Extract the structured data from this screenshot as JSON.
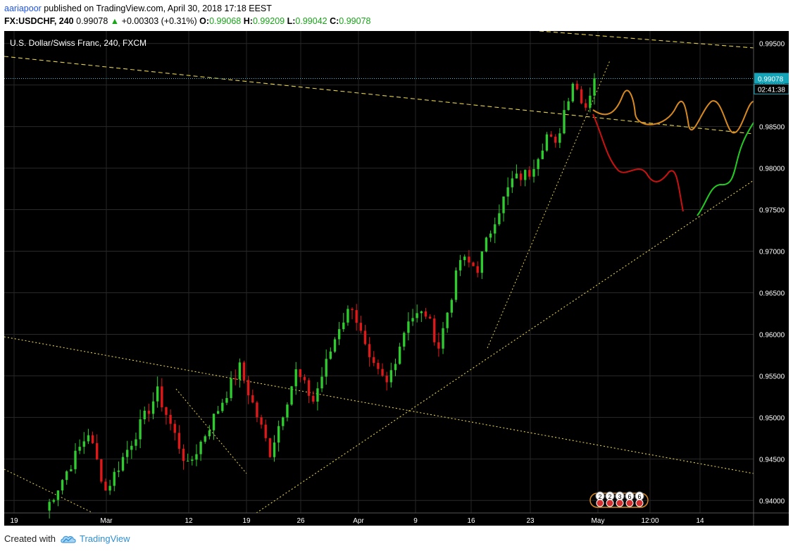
{
  "header": {
    "author": "aariapoor",
    "published_text": " published on TradingView.com, April 30, 2018 17:18 EEST",
    "symbol": "FX:USDCHF, 240",
    "last": "0.99078",
    "change": "+0.00303 (+0.31%)",
    "o_label": "O:",
    "o_value": "0.99068",
    "h_label": "H:",
    "h_value": "0.99209",
    "l_label": "L:",
    "l_value": "0.99042",
    "c_label": "C:",
    "c_value": "0.99078"
  },
  "chart_data": {
    "type": "candlestick",
    "title": "U.S. Dollar/Swiss Franc, 240, FXCM",
    "ylim": [
      0.9385,
      0.9965
    ],
    "y_ticks": [
      "0.99500",
      "0.99000",
      "0.98500",
      "0.98000",
      "0.97500",
      "0.97000",
      "0.96500",
      "0.96000",
      "0.95500",
      "0.95000",
      "0.94500",
      "0.94000"
    ],
    "x_ticks": [
      "19",
      "Mar",
      "12",
      "19",
      "26",
      "Apr",
      "9",
      "16",
      "23",
      "May",
      "12:00",
      "14"
    ],
    "last_price_label": "0.99078",
    "countdown_label": "02:41:38",
    "last_price": 0.99078,
    "key_points": [
      {
        "bar": 0,
        "price": 0.9388
      },
      {
        "bar": 10,
        "price": 0.9482
      },
      {
        "bar": 14,
        "price": 0.9412
      },
      {
        "bar": 26,
        "price": 0.953
      },
      {
        "bar": 33,
        "price": 0.944
      },
      {
        "bar": 45,
        "price": 0.956
      },
      {
        "bar": 52,
        "price": 0.9458
      },
      {
        "bar": 58,
        "price": 0.9555
      },
      {
        "bar": 62,
        "price": 0.952
      },
      {
        "bar": 68,
        "price": 0.961
      },
      {
        "bar": 71,
        "price": 0.9635
      },
      {
        "bar": 75,
        "price": 0.9565
      },
      {
        "bar": 79,
        "price": 0.954
      },
      {
        "bar": 84,
        "price": 0.962
      },
      {
        "bar": 88,
        "price": 0.9625
      },
      {
        "bar": 91,
        "price": 0.9585
      },
      {
        "bar": 96,
        "price": 0.969
      },
      {
        "bar": 100,
        "price": 0.968
      },
      {
        "bar": 104,
        "price": 0.974
      },
      {
        "bar": 108,
        "price": 0.9785
      },
      {
        "bar": 112,
        "price": 0.9795
      },
      {
        "bar": 116,
        "price": 0.984
      },
      {
        "bar": 118,
        "price": 0.9825
      },
      {
        "bar": 120,
        "price": 0.987
      },
      {
        "bar": 122,
        "price": 0.9905
      },
      {
        "bar": 124,
        "price": 0.9885
      },
      {
        "bar": 125,
        "price": 0.9875
      },
      {
        "bar": 127,
        "price": 0.9908
      }
    ],
    "event_badges": [
      "2",
      "2",
      "3",
      "6",
      "6"
    ],
    "colors": {
      "background": "#000000",
      "up_candle": "#2ecc2e",
      "down_candle": "#e01818",
      "price_line": "#4fc3d9",
      "trendline": "#e6d24a",
      "projection_orange": "#d98a1f",
      "projection_red": "#cc1111",
      "projection_green": "#22cc22",
      "axis_text": "#ffffff"
    }
  },
  "footer": {
    "created_with": "Created with",
    "brand": "TradingView",
    "logo_icon": "tradingview-cloud-icon"
  }
}
